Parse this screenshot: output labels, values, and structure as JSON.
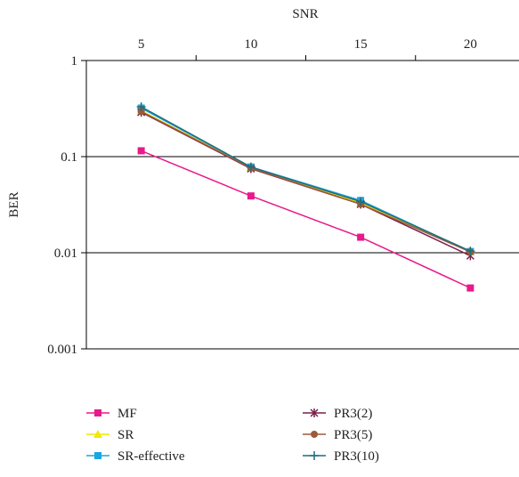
{
  "chart_data": {
    "type": "line",
    "title": "",
    "xlabel": "SNR",
    "ylabel": "BER",
    "x_axis_position": "top",
    "y_scale": "log",
    "ylim": [
      0.001,
      1
    ],
    "xlim": [
      2.5,
      22.5
    ],
    "grid": "horizontal",
    "x": [
      5,
      10,
      15,
      20
    ],
    "x_tick_labels": [
      "5",
      "10",
      "15",
      "20"
    ],
    "y_tick_labels": [
      "1",
      "0.1",
      "0.01",
      "0.001"
    ],
    "y_ticks": [
      1,
      0.1,
      0.01,
      0.001
    ],
    "legend_position": "bottom",
    "series": [
      {
        "name": "MF",
        "color": "#e8198b",
        "marker": "square",
        "values": [
          0.115,
          0.039,
          0.0145,
          0.0043
        ]
      },
      {
        "name": "SR",
        "color": "#f2e800",
        "marker": "triangle",
        "values": [
          0.3,
          0.077,
          0.033,
          0.0102
        ]
      },
      {
        "name": "SR-effective",
        "color": "#1aa6e0",
        "marker": "square",
        "values": [
          0.32,
          0.078,
          0.035,
          0.0103
        ]
      },
      {
        "name": "PR3(2)",
        "color": "#7a1f4a",
        "marker": "asterisk",
        "values": [
          0.29,
          0.075,
          0.032,
          0.0093
        ]
      },
      {
        "name": "PR3(5)",
        "color": "#9c5a3c",
        "marker": "circle",
        "values": [
          0.295,
          0.076,
          0.032,
          0.0102
        ]
      },
      {
        "name": "PR3(10)",
        "color": "#1f6f7a",
        "marker": "plus",
        "values": [
          0.33,
          0.078,
          0.034,
          0.0104
        ]
      }
    ]
  }
}
